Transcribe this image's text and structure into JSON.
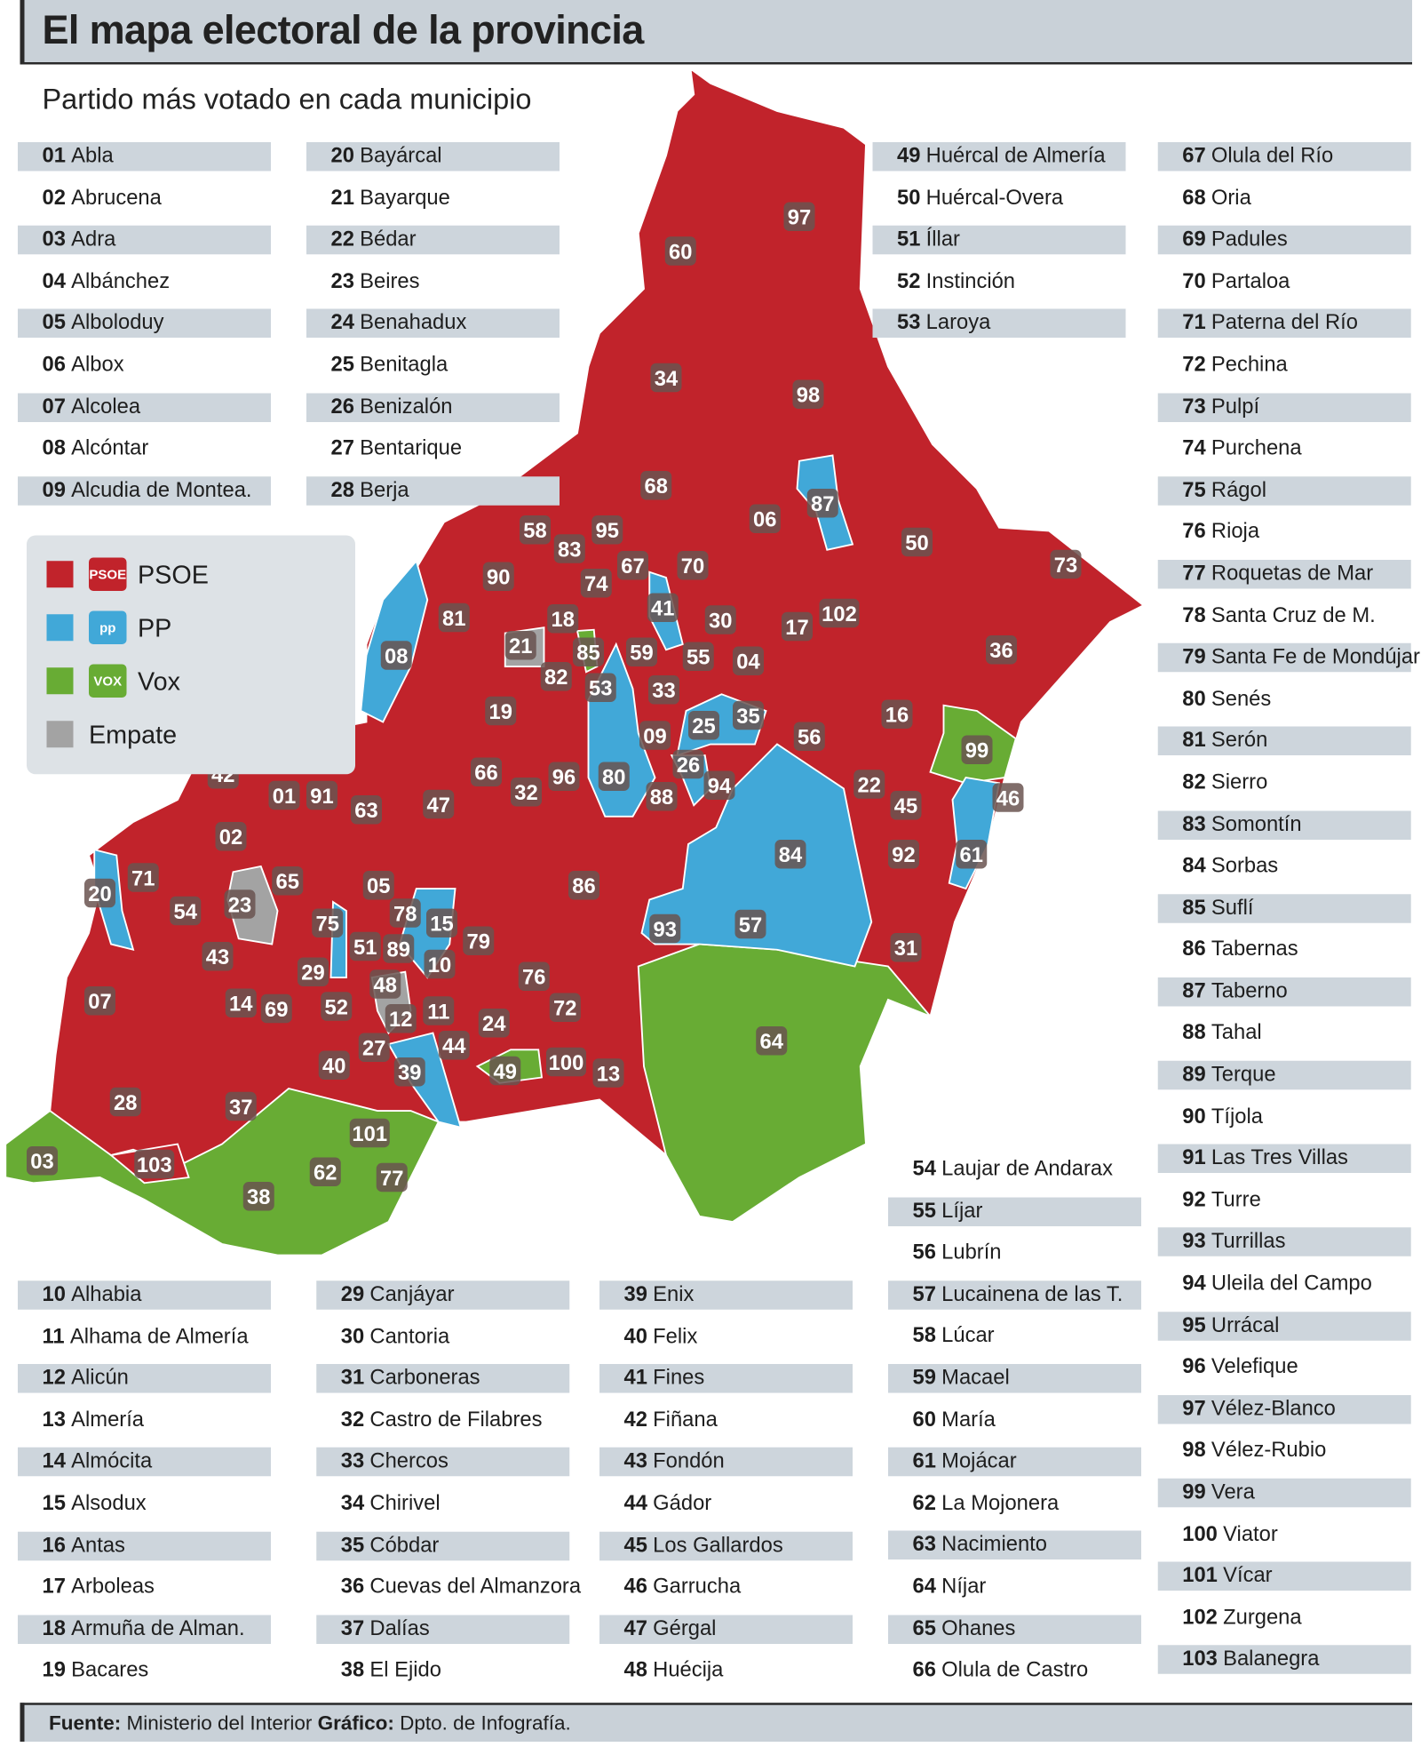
{
  "header": {
    "title": "El mapa electoral de la provincia",
    "subtitle": "Partido más votado en cada municipio"
  },
  "colors": {
    "PSOE": "#c1232b",
    "PP": "#41a8d8",
    "Vox": "#68ac34",
    "Empate": "#a3a3a3",
    "label": "#6a5350"
  },
  "legend": [
    {
      "party": "PSOE",
      "label": "PSOE",
      "logo_text": "PSOE",
      "icon": "psoe-rose-logo"
    },
    {
      "party": "PP",
      "label": "PP",
      "logo_text": "pp",
      "icon": "pp-logo"
    },
    {
      "party": "Vox",
      "label": "Vox",
      "logo_text": "VOX",
      "icon": "vox-logo"
    },
    {
      "party": "Empate",
      "label": "Empate",
      "logo_text": "",
      "icon": ""
    }
  ],
  "municipalities": [
    {
      "n": "01",
      "name": "Abla",
      "party": "PSOE"
    },
    {
      "n": "02",
      "name": "Abrucena",
      "party": "PSOE"
    },
    {
      "n": "03",
      "name": "Adra",
      "party": "Vox"
    },
    {
      "n": "04",
      "name": "Albánchez",
      "party": "PSOE"
    },
    {
      "n": "05",
      "name": "Alboloduy",
      "party": "PSOE"
    },
    {
      "n": "06",
      "name": "Albox",
      "party": "PSOE"
    },
    {
      "n": "07",
      "name": "Alcolea",
      "party": "PSOE"
    },
    {
      "n": "08",
      "name": "Alcóntar",
      "party": "PP"
    },
    {
      "n": "09",
      "name": "Alcudia de Montea.",
      "party": "PSOE"
    },
    {
      "n": "10",
      "name": "Alhabia",
      "party": "PSOE"
    },
    {
      "n": "11",
      "name": "Alhama de Almería",
      "party": "PSOE"
    },
    {
      "n": "12",
      "name": "Alicún",
      "party": "PSOE"
    },
    {
      "n": "13",
      "name": "Almería",
      "party": "PSOE"
    },
    {
      "n": "14",
      "name": "Almócita",
      "party": "PSOE"
    },
    {
      "n": "15",
      "name": "Alsodux",
      "party": "PP"
    },
    {
      "n": "16",
      "name": "Antas",
      "party": "PSOE"
    },
    {
      "n": "17",
      "name": "Arboleas",
      "party": "PSOE"
    },
    {
      "n": "18",
      "name": "Armuña de Alman.",
      "party": "PSOE"
    },
    {
      "n": "19",
      "name": "Bacares",
      "party": "PSOE"
    },
    {
      "n": "20",
      "name": "Bayárcal",
      "party": "PP"
    },
    {
      "n": "21",
      "name": "Bayarque",
      "party": "Empate"
    },
    {
      "n": "22",
      "name": "Bédar",
      "party": "PSOE"
    },
    {
      "n": "23",
      "name": "Beires",
      "party": "Empate"
    },
    {
      "n": "24",
      "name": "Benahadux",
      "party": "PSOE"
    },
    {
      "n": "25",
      "name": "Benitagla",
      "party": "PP"
    },
    {
      "n": "26",
      "name": "Benizalón",
      "party": "PP"
    },
    {
      "n": "27",
      "name": "Bentarique",
      "party": "PSOE"
    },
    {
      "n": "28",
      "name": "Berja",
      "party": "PSOE"
    },
    {
      "n": "29",
      "name": "Canjáyar",
      "party": "PSOE"
    },
    {
      "n": "30",
      "name": "Cantoria",
      "party": "PSOE"
    },
    {
      "n": "31",
      "name": "Carboneras",
      "party": "PSOE"
    },
    {
      "n": "32",
      "name": "Castro de Filabres",
      "party": "PSOE"
    },
    {
      "n": "33",
      "name": "Chercos",
      "party": "PSOE"
    },
    {
      "n": "34",
      "name": "Chirivel",
      "party": "PSOE"
    },
    {
      "n": "35",
      "name": "Cóbdar",
      "party": "PP"
    },
    {
      "n": "36",
      "name": "Cuevas del Almanzora",
      "party": "PSOE"
    },
    {
      "n": "37",
      "name": "Dalías",
      "party": "PSOE"
    },
    {
      "n": "38",
      "name": "El Ejido",
      "party": "Vox"
    },
    {
      "n": "39",
      "name": "Enix",
      "party": "PP"
    },
    {
      "n": "40",
      "name": "Felix",
      "party": "PSOE"
    },
    {
      "n": "41",
      "name": "Fines",
      "party": "PP"
    },
    {
      "n": "42",
      "name": "Fiñana",
      "party": "PSOE"
    },
    {
      "n": "43",
      "name": "Fondón",
      "party": "PSOE"
    },
    {
      "n": "44",
      "name": "Gádor",
      "party": "PSOE"
    },
    {
      "n": "45",
      "name": "Los Gallardos",
      "party": "PSOE"
    },
    {
      "n": "46",
      "name": "Garrucha",
      "party": "PP"
    },
    {
      "n": "47",
      "name": "Gérgal",
      "party": "PSOE"
    },
    {
      "n": "48",
      "name": "Huécija",
      "party": "Empate"
    },
    {
      "n": "49",
      "name": "Huércal de Almería",
      "party": "Vox"
    },
    {
      "n": "50",
      "name": "Huércal-Overa",
      "party": "PSOE"
    },
    {
      "n": "51",
      "name": "Íllar",
      "party": "PSOE"
    },
    {
      "n": "52",
      "name": "Instinción",
      "party": "PSOE"
    },
    {
      "n": "53",
      "name": "Laroya",
      "party": "PP"
    },
    {
      "n": "54",
      "name": "Laujar de Andarax",
      "party": "PSOE"
    },
    {
      "n": "55",
      "name": "Líjar",
      "party": "PSOE"
    },
    {
      "n": "56",
      "name": "Lubrín",
      "party": "PSOE"
    },
    {
      "n": "57",
      "name": "Lucainena de las T.",
      "party": "PP"
    },
    {
      "n": "58",
      "name": "Lúcar",
      "party": "PSOE"
    },
    {
      "n": "59",
      "name": "Macael",
      "party": "PSOE"
    },
    {
      "n": "60",
      "name": "María",
      "party": "PSOE"
    },
    {
      "n": "61",
      "name": "Mojácar",
      "party": "PP"
    },
    {
      "n": "62",
      "name": "La Mojonera",
      "party": "Vox"
    },
    {
      "n": "63",
      "name": "Nacimiento",
      "party": "PSOE"
    },
    {
      "n": "64",
      "name": "Níjar",
      "party": "Vox"
    },
    {
      "n": "65",
      "name": "Ohanes",
      "party": "PSOE"
    },
    {
      "n": "66",
      "name": "Olula de Castro",
      "party": "PSOE"
    },
    {
      "n": "67",
      "name": "Olula del Río",
      "party": "PSOE"
    },
    {
      "n": "68",
      "name": "Oria",
      "party": "PSOE"
    },
    {
      "n": "69",
      "name": "Padules",
      "party": "PSOE"
    },
    {
      "n": "70",
      "name": "Partaloa",
      "party": "PSOE"
    },
    {
      "n": "71",
      "name": "Paterna del Río",
      "party": "PSOE"
    },
    {
      "n": "72",
      "name": "Pechina",
      "party": "PSOE"
    },
    {
      "n": "73",
      "name": "Pulpí",
      "party": "PSOE"
    },
    {
      "n": "74",
      "name": "Purchena",
      "party": "PSOE"
    },
    {
      "n": "75",
      "name": "Rágol",
      "party": "PP"
    },
    {
      "n": "76",
      "name": "Rioja",
      "party": "PSOE"
    },
    {
      "n": "77",
      "name": "Roquetas de Mar",
      "party": "Vox"
    },
    {
      "n": "78",
      "name": "Santa Cruz de M.",
      "party": "PP"
    },
    {
      "n": "79",
      "name": "Santa Fe de Mondújar",
      "party": "PSOE"
    },
    {
      "n": "80",
      "name": "Senés",
      "party": "PP"
    },
    {
      "n": "81",
      "name": "Serón",
      "party": "PSOE"
    },
    {
      "n": "82",
      "name": "Sierro",
      "party": "PSOE"
    },
    {
      "n": "83",
      "name": "Somontín",
      "party": "PSOE"
    },
    {
      "n": "84",
      "name": "Sorbas",
      "party": "PP"
    },
    {
      "n": "85",
      "name": "Suflí",
      "party": "Vox"
    },
    {
      "n": "86",
      "name": "Tabernas",
      "party": "PSOE"
    },
    {
      "n": "87",
      "name": "Taberno",
      "party": "PP"
    },
    {
      "n": "88",
      "name": "Tahal",
      "party": "PSOE"
    },
    {
      "n": "89",
      "name": "Terque",
      "party": "PSOE"
    },
    {
      "n": "90",
      "name": "Tíjola",
      "party": "PSOE"
    },
    {
      "n": "91",
      "name": "Las Tres Villas",
      "party": "PSOE"
    },
    {
      "n": "92",
      "name": "Turre",
      "party": "PSOE"
    },
    {
      "n": "93",
      "name": "Turrillas",
      "party": "PP"
    },
    {
      "n": "94",
      "name": "Uleila del Campo",
      "party": "PSOE"
    },
    {
      "n": "95",
      "name": "Urrácal",
      "party": "PSOE"
    },
    {
      "n": "96",
      "name": "Velefique",
      "party": "PSOE"
    },
    {
      "n": "97",
      "name": "Vélez-Blanco",
      "party": "PSOE"
    },
    {
      "n": "98",
      "name": "Vélez-Rubio",
      "party": "PSOE"
    },
    {
      "n": "99",
      "name": "Vera",
      "party": "Vox"
    },
    {
      "n": "100",
      "name": "Viator",
      "party": "PSOE"
    },
    {
      "n": "101",
      "name": "Vícar",
      "party": "Vox"
    },
    {
      "n": "102",
      "name": "Zurgena",
      "party": "PSOE"
    },
    {
      "n": "103",
      "name": "Balanegra",
      "party": "PSOE"
    }
  ],
  "footer": {
    "source_label": "Fuente:",
    "source": "Ministerio del Interior",
    "graphic_label": "Gráfico:",
    "graphic": "Dpto. de Infografía."
  }
}
